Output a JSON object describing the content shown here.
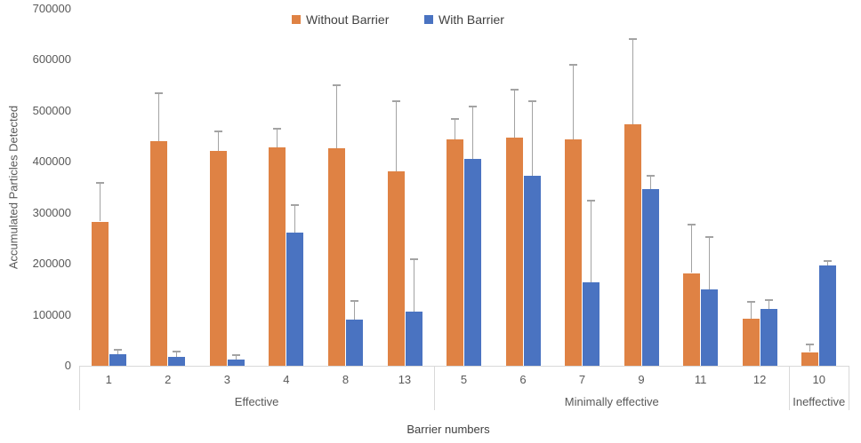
{
  "chart_data": {
    "type": "bar",
    "title": "",
    "xlabel": "Barrier numbers",
    "ylabel": "Accumulated Particles Detected",
    "ylim": [
      0,
      700000
    ],
    "ytick_step": 100000,
    "ytick_labels": [
      "0",
      "100000",
      "200000",
      "300000",
      "400000",
      "500000",
      "600000",
      "700000"
    ],
    "grid": false,
    "legend_position": "top-center",
    "error_bars": "plus-direction-only",
    "error_bar_color": "#a3a3a3",
    "axis_line_color": "#d9d9d9",
    "categories": [
      "1",
      "2",
      "3",
      "4",
      "8",
      "13",
      "5",
      "6",
      "7",
      "9",
      "11",
      "12",
      "10"
    ],
    "groups": [
      {
        "label": "Effective",
        "categories": [
          "1",
          "2",
          "3",
          "4",
          "8",
          "13"
        ]
      },
      {
        "label": "Minimally effective",
        "categories": [
          "5",
          "6",
          "7",
          "9",
          "11",
          "12"
        ]
      },
      {
        "label": "Ineffective",
        "categories": [
          "10"
        ]
      }
    ],
    "series": [
      {
        "name": "Without Barrier",
        "color": "#df8244",
        "values": [
          283000,
          440000,
          421000,
          428000,
          427000,
          382000,
          444000,
          447000,
          444000,
          473000,
          182000,
          93000,
          27000
        ],
        "error_plus": [
          77000,
          97000,
          40000,
          38000,
          125000,
          138000,
          42000,
          96000,
          148000,
          170000,
          96000,
          35000,
          16000
        ]
      },
      {
        "name": "With Barrier",
        "color": "#4a73c1",
        "values": [
          23000,
          17000,
          12000,
          262000,
          91000,
          107000,
          406000,
          372000,
          164000,
          347000,
          150000,
          112000,
          196000
        ],
        "error_plus": [
          11000,
          13000,
          11000,
          55000,
          38000,
          103000,
          105000,
          148000,
          161000,
          27000,
          105000,
          18000,
          11000
        ]
      }
    ]
  }
}
